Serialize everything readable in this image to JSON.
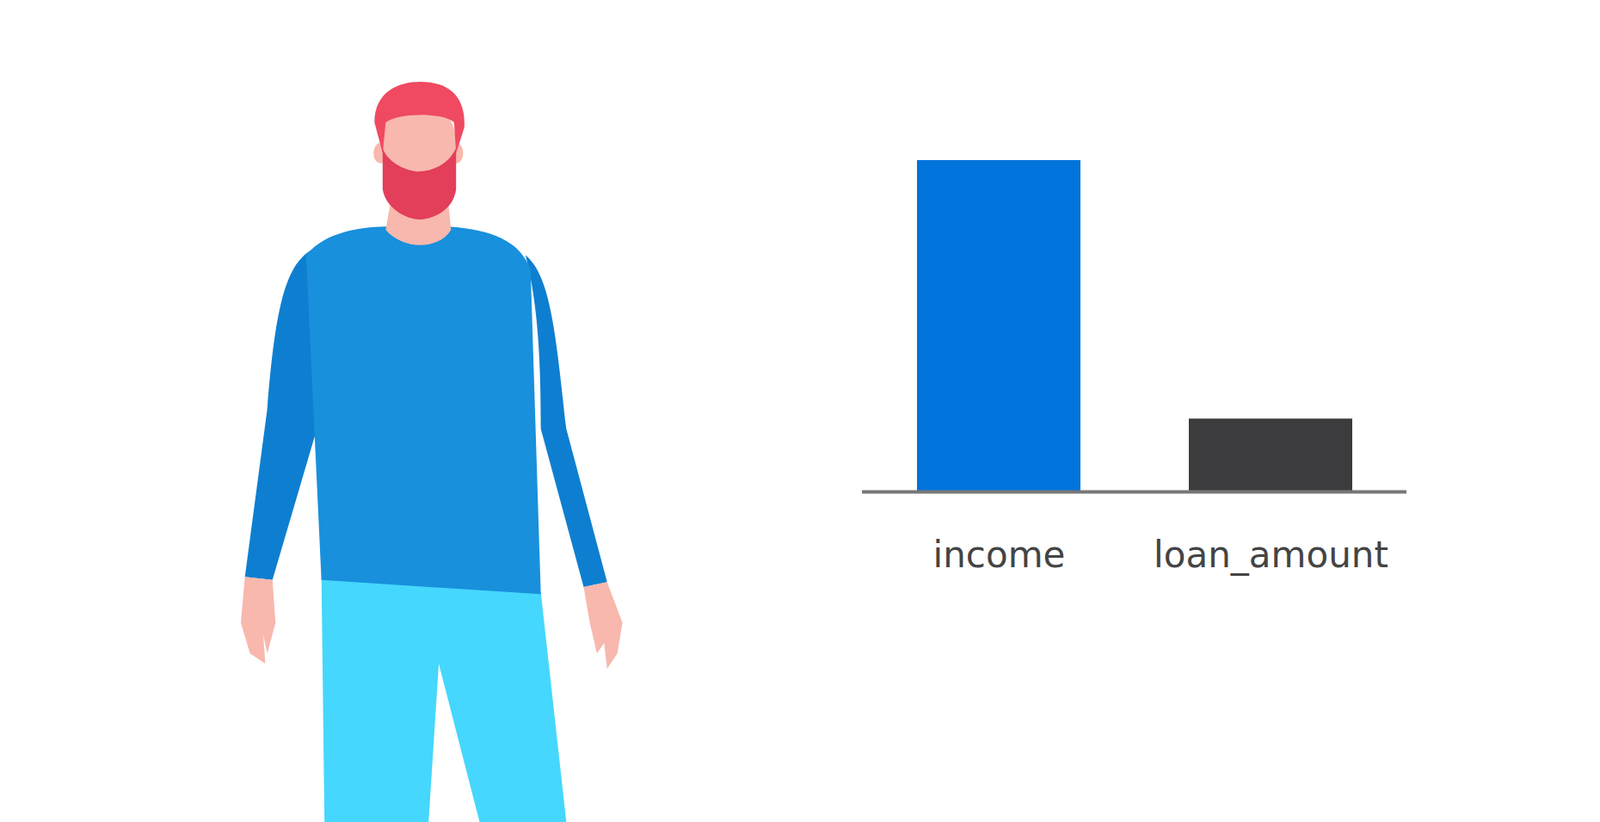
{
  "chart_data": {
    "type": "bar",
    "categories": [
      "income",
      "loan_amount"
    ],
    "values": [
      100,
      22
    ],
    "colors": [
      "#0074db",
      "#3c3c3e"
    ],
    "ylim": [
      0,
      100
    ],
    "tick_labels": "x"
  }
}
